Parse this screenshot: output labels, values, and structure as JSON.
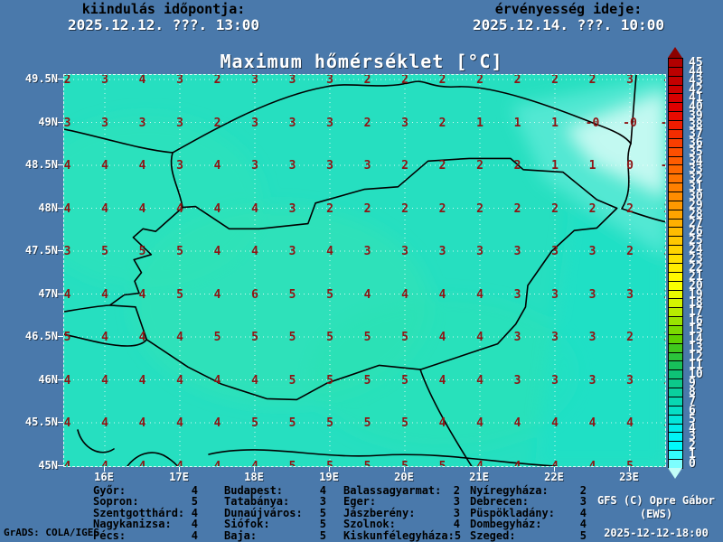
{
  "header": {
    "left_label": "kiindulás időpontja:",
    "left_datetime": "2025.12.12. ???. 13:00",
    "right_label": "érvényesség ideje:",
    "right_datetime": "2025.12.14. ???. 10:00"
  },
  "title": "Maximum hőmérséklet [°C]",
  "map": {
    "lat_labels": [
      "49.5N",
      "49N",
      "48.5N",
      "48N",
      "47.5N",
      "47N",
      "46.5N",
      "46N",
      "45.5N",
      "45N"
    ],
    "lon_labels": [
      "16E",
      "17E",
      "18E",
      "19E",
      "20E",
      "21E",
      "22E",
      "23E"
    ],
    "field_color": "#26dfc0",
    "value_color": "#8e1414",
    "border_color": "#000000"
  },
  "chart_data": {
    "type": "heatmap",
    "title": "Maximum hőmérséklet [°C]",
    "x_lons": [
      15.5,
      16,
      16.5,
      17,
      17.5,
      18,
      18.5,
      19,
      19.5,
      20,
      20.5,
      21,
      21.5,
      22,
      22.5,
      23,
      23.5
    ],
    "y_lats": [
      49.5,
      49,
      48.5,
      48,
      47.5,
      47,
      46.5,
      46,
      45.5,
      45
    ],
    "values": [
      [
        2,
        3,
        4,
        3,
        2,
        3,
        3,
        3,
        2,
        2,
        2,
        2,
        2,
        2,
        2,
        3,
        4
      ],
      [
        3,
        3,
        3,
        3,
        2,
        3,
        3,
        3,
        2,
        3,
        2,
        1,
        1,
        1,
        "-0",
        "-0",
        "-0"
      ],
      [
        4,
        4,
        4,
        3,
        4,
        3,
        3,
        3,
        3,
        2,
        2,
        2,
        2,
        1,
        1,
        0,
        "-0"
      ],
      [
        4,
        4,
        4,
        4,
        4,
        4,
        3,
        2,
        2,
        2,
        2,
        2,
        2,
        2,
        2,
        2,
        2
      ],
      [
        3,
        5,
        5,
        5,
        4,
        4,
        3,
        4,
        3,
        3,
        3,
        3,
        3,
        3,
        3,
        2,
        2
      ],
      [
        4,
        4,
        4,
        5,
        4,
        6,
        5,
        5,
        4,
        4,
        4,
        4,
        3,
        3,
        3,
        3,
        2
      ],
      [
        5,
        4,
        4,
        4,
        5,
        5,
        5,
        5,
        5,
        5,
        4,
        4,
        3,
        3,
        3,
        2,
        2
      ],
      [
        4,
        4,
        4,
        4,
        4,
        4,
        5,
        5,
        5,
        5,
        4,
        4,
        3,
        3,
        3,
        3,
        2
      ],
      [
        4,
        4,
        4,
        4,
        4,
        5,
        5,
        5,
        5,
        5,
        4,
        4,
        4,
        4,
        4,
        4,
        3
      ],
      [
        4,
        4,
        4,
        4,
        4,
        4,
        5,
        5,
        5,
        5,
        5,
        4,
        4,
        4,
        4,
        5,
        4
      ]
    ],
    "unit": "°C",
    "legend_position": "right",
    "value_range_shown": [
      0,
      45
    ]
  },
  "colorbar": {
    "values": [
      45,
      44,
      43,
      42,
      41,
      40,
      39,
      38,
      37,
      36,
      35,
      34,
      33,
      32,
      31,
      30,
      29,
      28,
      27,
      26,
      25,
      24,
      23,
      22,
      21,
      20,
      19,
      18,
      17,
      16,
      15,
      14,
      13,
      12,
      11,
      10,
      9,
      8,
      7,
      6,
      5,
      4,
      3,
      2,
      1,
      0
    ],
    "colors": [
      "#b10000",
      "#bb0000",
      "#c40000",
      "#cd0000",
      "#d60000",
      "#df0000",
      "#e80b00",
      "#ef1c00",
      "#f42d00",
      "#f93e00",
      "#fd4f00",
      "#ff5c00",
      "#ff6800",
      "#ff7400",
      "#ff8000",
      "#ff8c00",
      "#ff9800",
      "#ffa400",
      "#ffb000",
      "#ffbc00",
      "#ffc800",
      "#ffd400",
      "#ffe000",
      "#ffec00",
      "#fff800",
      "#f9ff00",
      "#e9fb00",
      "#d4f500",
      "#b7ec00",
      "#99e300",
      "#7bda00",
      "#5dd100",
      "#3fc81e",
      "#2bc43c",
      "#17c05a",
      "#0ec276",
      "#0cc98a",
      "#0ad09e",
      "#08d7b2",
      "#06dec6",
      "#04e5da",
      "#02ecec",
      "#01f3f6",
      "#00fafc",
      "#33fdfd",
      "#7dfefe"
    ],
    "top_arrow_color": "#8c0000",
    "bottom_arrow_color": "#c2fdf7"
  },
  "cities": {
    "groups": [
      [
        {
          "name": "Győr:",
          "value": "4"
        },
        {
          "name": "Sopron:",
          "value": "5"
        },
        {
          "name": "Szentgotthárd:",
          "value": "4"
        },
        {
          "name": "Nagykanizsa:",
          "value": "4"
        },
        {
          "name": "Pécs:",
          "value": "4"
        }
      ],
      [
        {
          "name": "Budapest:",
          "value": "4"
        },
        {
          "name": "Tatabánya:",
          "value": "3"
        },
        {
          "name": "Dunaújváros:",
          "value": "5"
        },
        {
          "name": "Siófok:",
          "value": "5"
        },
        {
          "name": "Baja:",
          "value": "5"
        }
      ],
      [
        {
          "name": "Balassagyarmat:",
          "value": "2"
        },
        {
          "name": "Eger:",
          "value": "3"
        },
        {
          "name": "Jászberény:",
          "value": "3"
        },
        {
          "name": "Szolnok:",
          "value": "4"
        },
        {
          "name": "Kiskunfélegyháza:",
          "value": "5"
        }
      ],
      [
        {
          "name": "Nyíregyháza:",
          "value": "2"
        },
        {
          "name": "Debrecen:",
          "value": "3"
        },
        {
          "name": "Püspökladány:",
          "value": "4"
        },
        {
          "name": "Dombegyház:",
          "value": "4"
        },
        {
          "name": "Szeged:",
          "value": "5"
        }
      ]
    ]
  },
  "credits": {
    "line1": "GFS (C) Opre Gábor",
    "line2": "(EWS)",
    "timestamp": "2025-12-12-18:00"
  },
  "grads_stamp": "GrADS: COLA/IGES"
}
